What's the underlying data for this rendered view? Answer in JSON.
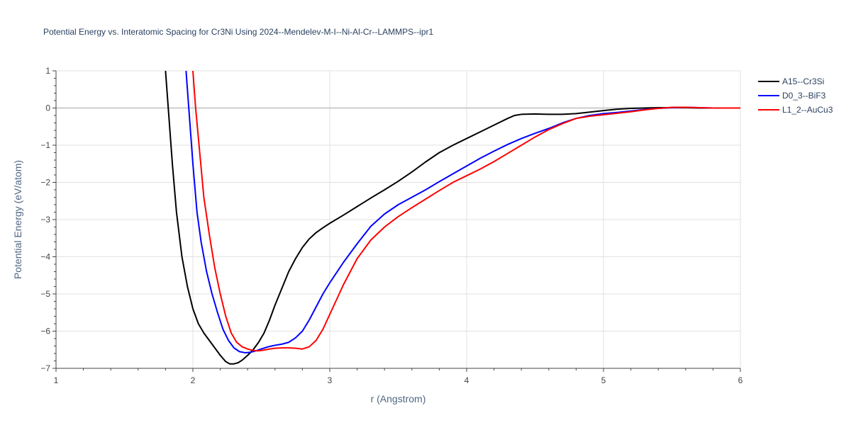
{
  "chart_data": {
    "type": "line",
    "title": "Potential Energy vs. Interatomic Spacing for Cr3Ni Using 2024--Mendelev-M-I--Ni-Al-Cr--LAMMPS--ipr1",
    "xlabel": "r (Angstrom)",
    "ylabel": "Potential Energy (eV/atom)",
    "xlim": [
      1,
      6
    ],
    "ylim": [
      -7,
      1
    ],
    "xticks": [
      1,
      2,
      3,
      4,
      5,
      6
    ],
    "xtick_labels": [
      "1",
      "2",
      "3",
      "4",
      "5",
      "6"
    ],
    "yticks": [
      -7,
      -6,
      -5,
      -4,
      -3,
      -2,
      -1,
      0,
      1
    ],
    "ytick_labels": [
      "−7",
      "−6",
      "−5",
      "−4",
      "−3",
      "−2",
      "−1",
      "0",
      "1"
    ],
    "grid": true,
    "legend_position": "top-right",
    "series": [
      {
        "name": "A15--Cr3Si",
        "color": "#000000",
        "x": [
          1.8,
          1.82,
          1.85,
          1.88,
          1.92,
          1.96,
          2.0,
          2.04,
          2.08,
          2.12,
          2.16,
          2.2,
          2.24,
          2.27,
          2.3,
          2.33,
          2.36,
          2.4,
          2.44,
          2.48,
          2.52,
          2.56,
          2.6,
          2.65,
          2.7,
          2.75,
          2.8,
          2.85,
          2.9,
          2.95,
          3.0,
          3.1,
          3.2,
          3.3,
          3.4,
          3.5,
          3.6,
          3.7,
          3.8,
          3.9,
          4.0,
          4.1,
          4.2,
          4.3,
          4.35,
          4.4,
          4.5,
          4.6,
          4.7,
          4.8,
          4.9,
          5.0,
          5.1,
          5.2,
          5.3,
          5.4,
          5.5,
          5.6,
          5.7,
          5.8,
          5.9,
          6.0
        ],
        "y": [
          1.0,
          0.0,
          -1.5,
          -2.8,
          -4.0,
          -4.8,
          -5.4,
          -5.8,
          -6.05,
          -6.25,
          -6.45,
          -6.65,
          -6.82,
          -6.88,
          -6.88,
          -6.85,
          -6.78,
          -6.65,
          -6.5,
          -6.3,
          -6.05,
          -5.7,
          -5.3,
          -4.85,
          -4.4,
          -4.05,
          -3.75,
          -3.52,
          -3.35,
          -3.22,
          -3.1,
          -2.88,
          -2.65,
          -2.42,
          -2.2,
          -1.97,
          -1.72,
          -1.45,
          -1.2,
          -1.0,
          -0.82,
          -0.64,
          -0.46,
          -0.28,
          -0.2,
          -0.17,
          -0.16,
          -0.17,
          -0.17,
          -0.15,
          -0.11,
          -0.07,
          -0.03,
          -0.01,
          0.0,
          0.01,
          0.01,
          0.01,
          0.0,
          0.0,
          0.0,
          0.0
        ]
      },
      {
        "name": "D0_3--BiF3",
        "color": "#0000ff",
        "x": [
          1.95,
          1.97,
          2.0,
          2.03,
          2.06,
          2.1,
          2.14,
          2.18,
          2.22,
          2.26,
          2.3,
          2.34,
          2.38,
          2.42,
          2.46,
          2.5,
          2.55,
          2.6,
          2.65,
          2.7,
          2.75,
          2.8,
          2.85,
          2.9,
          2.95,
          3.0,
          3.1,
          3.2,
          3.3,
          3.4,
          3.5,
          3.6,
          3.7,
          3.8,
          3.9,
          4.0,
          4.1,
          4.2,
          4.3,
          4.4,
          4.5,
          4.6,
          4.7,
          4.8,
          4.9,
          5.0,
          5.1,
          5.2,
          5.3,
          5.4,
          5.5,
          5.6,
          5.7,
          5.8,
          5.9,
          6.0
        ],
        "y": [
          1.0,
          0.0,
          -1.5,
          -2.8,
          -3.6,
          -4.4,
          -5.0,
          -5.5,
          -5.95,
          -6.25,
          -6.45,
          -6.55,
          -6.58,
          -6.57,
          -6.53,
          -6.48,
          -6.42,
          -6.38,
          -6.35,
          -6.3,
          -6.18,
          -6.0,
          -5.7,
          -5.35,
          -5.0,
          -4.7,
          -4.15,
          -3.65,
          -3.18,
          -2.85,
          -2.6,
          -2.4,
          -2.2,
          -1.98,
          -1.77,
          -1.56,
          -1.35,
          -1.16,
          -0.98,
          -0.82,
          -0.68,
          -0.55,
          -0.4,
          -0.28,
          -0.2,
          -0.15,
          -0.12,
          -0.08,
          -0.04,
          -0.01,
          0.01,
          0.02,
          0.01,
          0.0,
          0.0,
          0.0
        ]
      },
      {
        "name": "L1_2--AuCu3",
        "color": "#ff0000",
        "x": [
          2.0,
          2.02,
          2.05,
          2.08,
          2.12,
          2.16,
          2.2,
          2.24,
          2.28,
          2.32,
          2.36,
          2.4,
          2.44,
          2.48,
          2.52,
          2.56,
          2.6,
          2.65,
          2.7,
          2.75,
          2.8,
          2.85,
          2.9,
          2.95,
          3.0,
          3.1,
          3.2,
          3.3,
          3.4,
          3.5,
          3.6,
          3.7,
          3.8,
          3.9,
          4.0,
          4.1,
          4.2,
          4.3,
          4.4,
          4.5,
          4.6,
          4.7,
          4.8,
          4.9,
          5.0,
          5.1,
          5.2,
          5.3,
          5.4,
          5.5,
          5.6,
          5.7,
          5.8,
          5.9,
          6.0
        ],
        "y": [
          1.0,
          0.0,
          -1.2,
          -2.4,
          -3.4,
          -4.3,
          -5.0,
          -5.6,
          -6.05,
          -6.3,
          -6.42,
          -6.48,
          -6.52,
          -6.53,
          -6.51,
          -6.48,
          -6.46,
          -6.45,
          -6.45,
          -6.46,
          -6.48,
          -6.42,
          -6.25,
          -5.95,
          -5.55,
          -4.75,
          -4.05,
          -3.55,
          -3.2,
          -2.92,
          -2.68,
          -2.45,
          -2.22,
          -2.0,
          -1.82,
          -1.64,
          -1.44,
          -1.22,
          -1.0,
          -0.78,
          -0.58,
          -0.42,
          -0.28,
          -0.22,
          -0.18,
          -0.14,
          -0.1,
          -0.05,
          -0.01,
          0.02,
          0.02,
          0.01,
          0.0,
          0.0,
          0.0
        ]
      }
    ]
  }
}
